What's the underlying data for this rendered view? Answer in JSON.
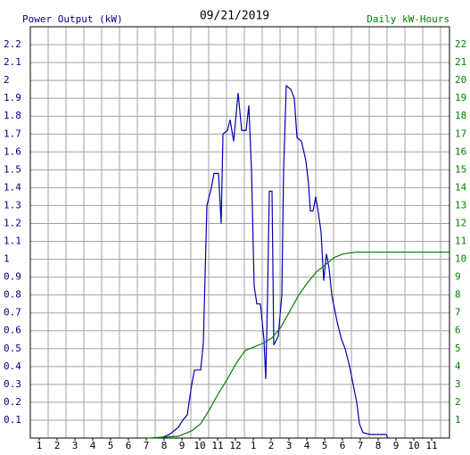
{
  "chart_data": {
    "type": "line",
    "title": "09/21/2019",
    "ylabel": "Power Output (kW)",
    "y2label": "Daily kW-Hours",
    "xlim": [
      0.5,
      24
    ],
    "ylim": [
      0,
      2.3
    ],
    "y2lim": [
      0,
      23
    ],
    "xticks": [
      1,
      2,
      3,
      4,
      5,
      6,
      7,
      8,
      9,
      10,
      11,
      12,
      {
        "value": 13,
        "label": "1"
      },
      {
        "value": 14,
        "label": "2"
      },
      {
        "value": 15,
        "label": "3"
      },
      {
        "value": 16,
        "label": "4"
      },
      {
        "value": 17,
        "label": "5"
      },
      {
        "value": 18,
        "label": "6"
      },
      {
        "value": 19,
        "label": "7"
      },
      {
        "value": 20,
        "label": "8"
      },
      {
        "value": 21,
        "label": "9"
      },
      {
        "value": 22,
        "label": "10"
      },
      {
        "value": 23,
        "label": "11"
      }
    ],
    "yticks": [
      0.1,
      0.2,
      0.3,
      0.4,
      0.5,
      0.6,
      0.7,
      0.8,
      0.9,
      1.0,
      1.1,
      1.2,
      1.3,
      1.4,
      1.5,
      1.6,
      1.7,
      1.8,
      1.9,
      2.0,
      2.1,
      2.2
    ],
    "y2ticks": [
      1,
      2,
      3,
      4,
      5,
      6,
      7,
      8,
      9,
      10,
      11,
      12,
      13,
      14,
      15,
      16,
      17,
      18,
      19,
      20,
      21,
      22
    ],
    "grid": true,
    "series": [
      {
        "color": "#0000b0",
        "axis": "y",
        "x": [
          7.8,
          8.3,
          8.8,
          9.05,
          9.3,
          9.55,
          9.7,
          10.05,
          10.2,
          10.4,
          10.65,
          10.8,
          11.05,
          11.2,
          11.3,
          11.55,
          11.7,
          11.9,
          12.15,
          12.35,
          12.6,
          12.75,
          12.9,
          13.05,
          13.2,
          13.4,
          13.6,
          13.7,
          13.8,
          13.9,
          14.05,
          14.15,
          14.4,
          14.6,
          14.7,
          14.85,
          15.1,
          15.3,
          15.45,
          15.7,
          15.95,
          16.1,
          16.2,
          16.35,
          16.5,
          16.65,
          16.8,
          16.95,
          17.1,
          17.25,
          17.4,
          17.7,
          17.95,
          18.15,
          18.4,
          18.6,
          18.8,
          18.95,
          19.15,
          19.55,
          20.45,
          20.55
        ],
        "values": [
          0,
          0.02,
          0.06,
          0.1,
          0.13,
          0.3,
          0.38,
          0.38,
          0.53,
          1.3,
          1.4,
          1.48,
          1.48,
          1.2,
          1.7,
          1.72,
          1.78,
          1.66,
          1.93,
          1.72,
          1.72,
          1.86,
          1.5,
          0.85,
          0.75,
          0.75,
          0.55,
          0.33,
          0.8,
          1.38,
          1.38,
          0.52,
          0.57,
          0.8,
          1.5,
          1.97,
          1.95,
          1.9,
          1.68,
          1.66,
          1.55,
          1.42,
          1.27,
          1.27,
          1.35,
          1.26,
          1.15,
          0.88,
          1.03,
          0.95,
          0.8,
          0.65,
          0.55,
          0.5,
          0.4,
          0.3,
          0.2,
          0.08,
          0.03,
          0.02,
          0.02,
          0
        ]
      },
      {
        "color": "#008000",
        "axis": "y2",
        "x": [
          7.05,
          8.8,
          9.55,
          10.05,
          10.55,
          11.05,
          11.55,
          12.05,
          12.55,
          13.05,
          13.55,
          14.05,
          14.55,
          15.05,
          15.55,
          16.05,
          16.55,
          17.05,
          17.55,
          18.05,
          18.8,
          24
        ],
        "values": [
          0,
          0.1,
          0.4,
          0.8,
          1.6,
          2.5,
          3.3,
          4.2,
          4.9,
          5.1,
          5.3,
          5.6,
          6.2,
          7.1,
          8,
          8.7,
          9.3,
          9.7,
          10.1,
          10.3,
          10.4,
          10.4
        ]
      }
    ]
  }
}
